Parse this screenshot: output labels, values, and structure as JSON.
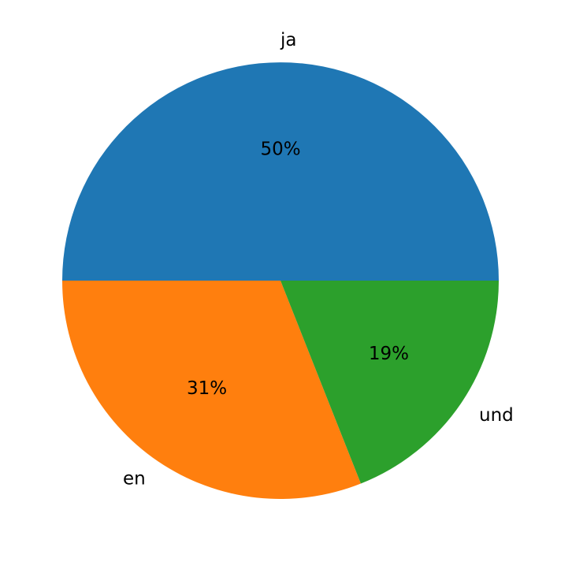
{
  "chart_data": {
    "type": "pie",
    "categories": [
      "ja",
      "en",
      "und"
    ],
    "values": [
      50,
      31,
      19
    ],
    "value_labels": [
      "50%",
      "31%",
      "19%"
    ],
    "colors": [
      "#1f77b4",
      "#ff7f0e",
      "#2ca02c"
    ]
  }
}
